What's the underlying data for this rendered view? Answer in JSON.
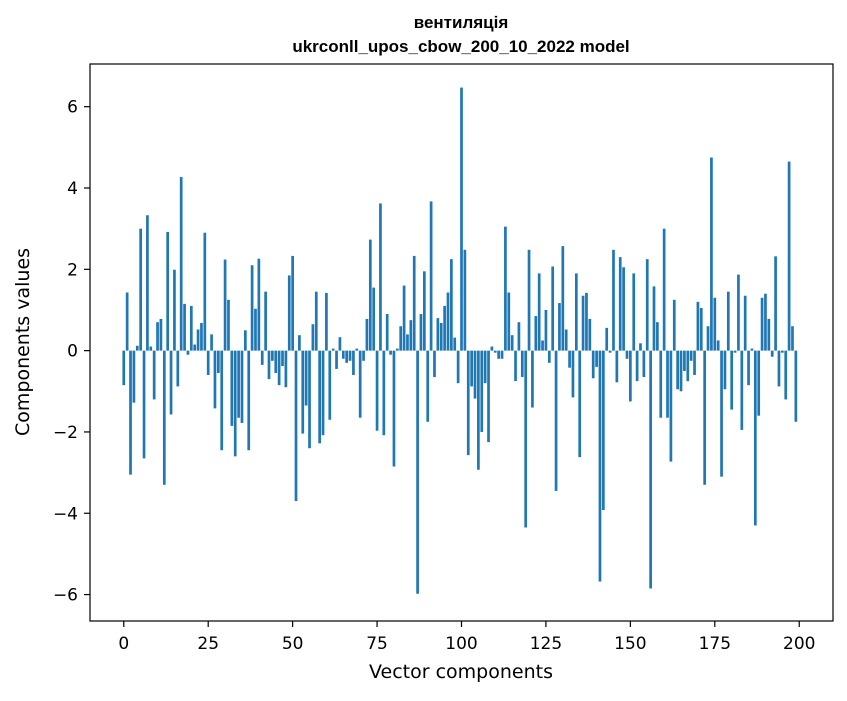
{
  "chart_data": {
    "type": "bar",
    "title": "вентиляція",
    "subtitle": "ukrconll_upos_cbow_200_10_2022 model",
    "xlabel": "Vector components",
    "ylabel": "Components values",
    "xlim": [
      -10,
      210
    ],
    "ylim": [
      -6.65,
      7.05
    ],
    "xticks": [
      0,
      25,
      50,
      75,
      100,
      125,
      150,
      175,
      200
    ],
    "xtick_labels": [
      "0",
      "25",
      "50",
      "75",
      "100",
      "125",
      "150",
      "175",
      "200"
    ],
    "yticks": [
      -6,
      -4,
      -2,
      0,
      2,
      4,
      6
    ],
    "ytick_labels": [
      "−6",
      "−4",
      "−2",
      "0",
      "2",
      "4",
      "6"
    ],
    "grid": false,
    "bar_color": "#1f77b4",
    "x": [
      0,
      1,
      2,
      3,
      4,
      5,
      6,
      7,
      8,
      9,
      10,
      11,
      12,
      13,
      14,
      15,
      16,
      17,
      18,
      19,
      20,
      21,
      22,
      23,
      24,
      25,
      26,
      27,
      28,
      29,
      30,
      31,
      32,
      33,
      34,
      35,
      36,
      37,
      38,
      39,
      40,
      41,
      42,
      43,
      44,
      45,
      46,
      47,
      48,
      49,
      50,
      51,
      52,
      53,
      54,
      55,
      56,
      57,
      58,
      59,
      60,
      61,
      62,
      63,
      64,
      65,
      66,
      67,
      68,
      69,
      70,
      71,
      72,
      73,
      74,
      75,
      76,
      77,
      78,
      79,
      80,
      81,
      82,
      83,
      84,
      85,
      86,
      87,
      88,
      89,
      90,
      91,
      92,
      93,
      94,
      95,
      96,
      97,
      98,
      99,
      100,
      101,
      102,
      103,
      104,
      105,
      106,
      107,
      108,
      109,
      110,
      111,
      112,
      113,
      114,
      115,
      116,
      117,
      118,
      119,
      120,
      121,
      122,
      123,
      124,
      125,
      126,
      127,
      128,
      129,
      130,
      131,
      132,
      133,
      134,
      135,
      136,
      137,
      138,
      139,
      140,
      141,
      142,
      143,
      144,
      145,
      146,
      147,
      148,
      149,
      150,
      151,
      152,
      153,
      154,
      155,
      156,
      157,
      158,
      159,
      160,
      161,
      162,
      163,
      164,
      165,
      166,
      167,
      168,
      169,
      170,
      171,
      172,
      173,
      174,
      175,
      176,
      177,
      178,
      179,
      180,
      181,
      182,
      183,
      184,
      185,
      186,
      187,
      188,
      189,
      190,
      191,
      192,
      193,
      194,
      195,
      196,
      197,
      198,
      199
    ],
    "values": [
      -0.85,
      1.43,
      -3.05,
      -1.28,
      0.12,
      3.0,
      -2.65,
      3.33,
      0.1,
      -1.2,
      0.7,
      0.78,
      -3.3,
      2.92,
      -1.57,
      1.99,
      -0.88,
      4.27,
      1.15,
      -0.1,
      1.1,
      0.15,
      0.52,
      0.68,
      2.9,
      -0.6,
      0.4,
      -1.42,
      -0.55,
      -2.45,
      2.24,
      1.25,
      -1.85,
      -2.6,
      -1.65,
      -1.78,
      0.5,
      -2.45,
      2.1,
      1.03,
      2.26,
      -0.35,
      1.45,
      -0.7,
      -0.25,
      -0.55,
      -0.85,
      -0.38,
      -0.9,
      1.85,
      2.33,
      -3.7,
      0.38,
      -2.04,
      -1.35,
      -2.4,
      0.65,
      1.45,
      -2.28,
      -2.08,
      1.42,
      -1.7,
      0.05,
      -0.45,
      0.33,
      -0.2,
      -0.3,
      -0.25,
      -0.6,
      0.05,
      -1.65,
      -0.25,
      0.78,
      2.73,
      1.55,
      -1.97,
      3.62,
      -2.08,
      0.9,
      -0.1,
      -2.85,
      0.05,
      0.6,
      1.6,
      0.4,
      0.75,
      2.33,
      -5.98,
      0.9,
      1.95,
      -1.75,
      3.67,
      -0.65,
      0.8,
      0.68,
      1.1,
      1.43,
      2.25,
      0.32,
      -0.8,
      6.47,
      2.48,
      -2.57,
      -0.88,
      -1.18,
      -2.93,
      -2.0,
      -0.8,
      -2.25,
      0.1,
      -0.05,
      -0.2,
      -0.2,
      3.05,
      1.43,
      0.38,
      -0.75,
      0.7,
      -0.65,
      -4.35,
      2.48,
      -1.4,
      0.85,
      1.9,
      0.25,
      1.0,
      -0.3,
      2.07,
      -3.45,
      1.17,
      2.57,
      0.52,
      -0.42,
      -1.15,
      1.9,
      -2.62,
      1.35,
      1.42,
      0.78,
      -0.68,
      -0.4,
      -5.68,
      -3.92,
      0.56,
      -0.05,
      2.48,
      -0.78,
      2.3,
      2.05,
      -0.2,
      -1.25,
      1.9,
      -0.75,
      0.18,
      -0.65,
      2.25,
      -5.85,
      1.58,
      0.7,
      -1.65,
      3.0,
      -1.65,
      -2.73,
      1.25,
      -0.95,
      -1.0,
      -0.5,
      -0.75,
      -0.25,
      -0.6,
      1.2,
      1.05,
      -3.3,
      0.6,
      4.75,
      1.3,
      0.25,
      -3.1,
      -0.95,
      1.45,
      -1.45,
      -0.05,
      1.87,
      -1.95,
      1.35,
      -0.85,
      0.05,
      -4.3,
      -1.6,
      1.3,
      1.4,
      0.78,
      -0.15,
      2.32,
      -0.88,
      -0.05,
      -1.2,
      4.65,
      0.6,
      -1.75
    ]
  }
}
